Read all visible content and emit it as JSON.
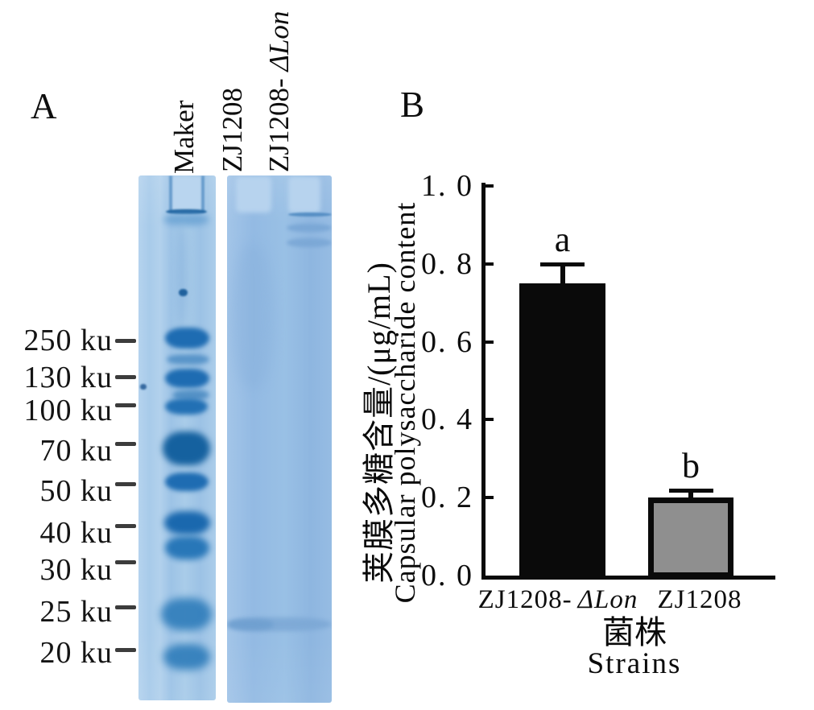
{
  "figure": {
    "panel_a": {
      "label": "A",
      "lane_labels": [
        {
          "text": "Maker",
          "italic": ""
        },
        {
          "text": "ZJ1208",
          "italic": ""
        },
        {
          "text": "ZJ1208- ",
          "italic": "ΔLon"
        }
      ],
      "marker_ladder": [
        "250 ku",
        "130 ku",
        "100 ku",
        "70 ku",
        "50 ku",
        "40 ku",
        "30 ku",
        "25 ku",
        "20 ku"
      ]
    },
    "panel_b": {
      "label": "B"
    }
  },
  "chart_data": {
    "type": "bar",
    "title": "",
    "categories": [
      "ZJ1208-ΔLon",
      "ZJ1208"
    ],
    "categories_display": [
      {
        "prefix": "ZJ1208-",
        "italic": "ΔLon"
      },
      {
        "prefix": "ZJ1208",
        "italic": ""
      }
    ],
    "series": [
      {
        "name": "Capsular polysaccharide content",
        "values": [
          0.75,
          0.2
        ],
        "errors": [
          0.05,
          0.02
        ]
      }
    ],
    "significance_letters": [
      "a",
      "b"
    ],
    "bar_colors": [
      "#0a0a0a",
      "#8f8f8f"
    ],
    "bar_border_color": "#0a0a0a",
    "ylabel_zh": "荚膜多糖含量/(μg/mL)",
    "ylabel_en": "Capsular polysaccharide content",
    "xlabel_zh": "菌株",
    "xlabel_en": "Strains",
    "ylim": [
      0.0,
      1.0
    ],
    "ytick_labels": [
      "1. 0",
      "0. 8",
      "0. 6",
      "0. 4",
      "0. 2",
      "0. 0"
    ],
    "ytick_values": [
      1.0,
      0.8,
      0.6,
      0.4,
      0.2,
      0.0
    ],
    "grid": false,
    "legend_position": "none"
  }
}
